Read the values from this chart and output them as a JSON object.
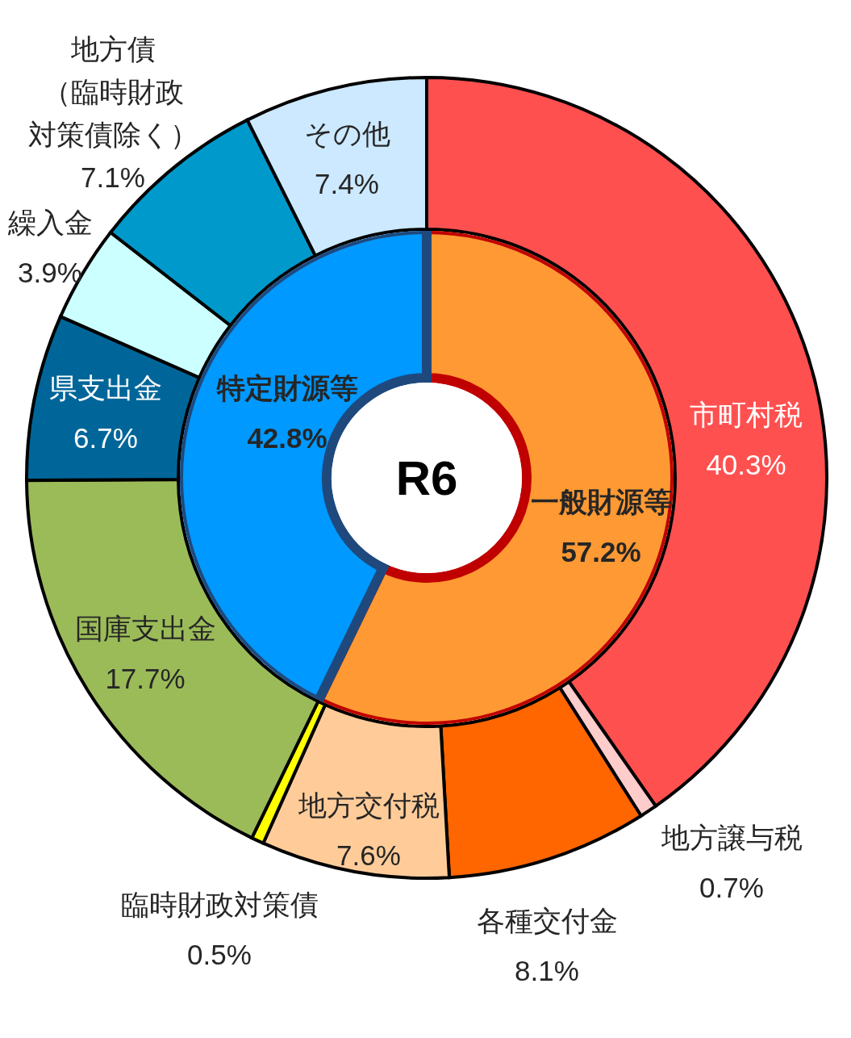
{
  "chart_data": [
    {
      "type": "donut",
      "title": "R6",
      "categories": [
        "一般財源等",
        "特定財源等"
      ],
      "values": [
        57.2,
        42.8
      ],
      "colors": [
        "#ff9933",
        "#0099ff"
      ],
      "value_labels": [
        "57.2%",
        "42.8%"
      ]
    },
    {
      "type": "donut",
      "categories": [
        "市町村税",
        "地方譲与税",
        "各種交付金",
        "地方交付税",
        "臨時財政対策債",
        "国庫支出金",
        "県支出金",
        "繰入金",
        "地方債（臨時財政対策債除く）",
        "その他"
      ],
      "values": [
        40.3,
        0.7,
        8.1,
        7.6,
        0.5,
        17.7,
        6.7,
        3.9,
        7.1,
        7.4
      ],
      "colors": [
        "#ff5050",
        "#ffcccc",
        "#ff6600",
        "#ffcc99",
        "#ffff00",
        "#9bbb59",
        "#006699",
        "#ccffff",
        "#0099cc",
        "#cce9ff"
      ],
      "value_labels": [
        "40.3%",
        "0.7%",
        "8.1%",
        "7.6%",
        "0.5%",
        "17.7%",
        "6.7%",
        "3.9%",
        "7.1%",
        "7.4%"
      ]
    }
  ]
}
